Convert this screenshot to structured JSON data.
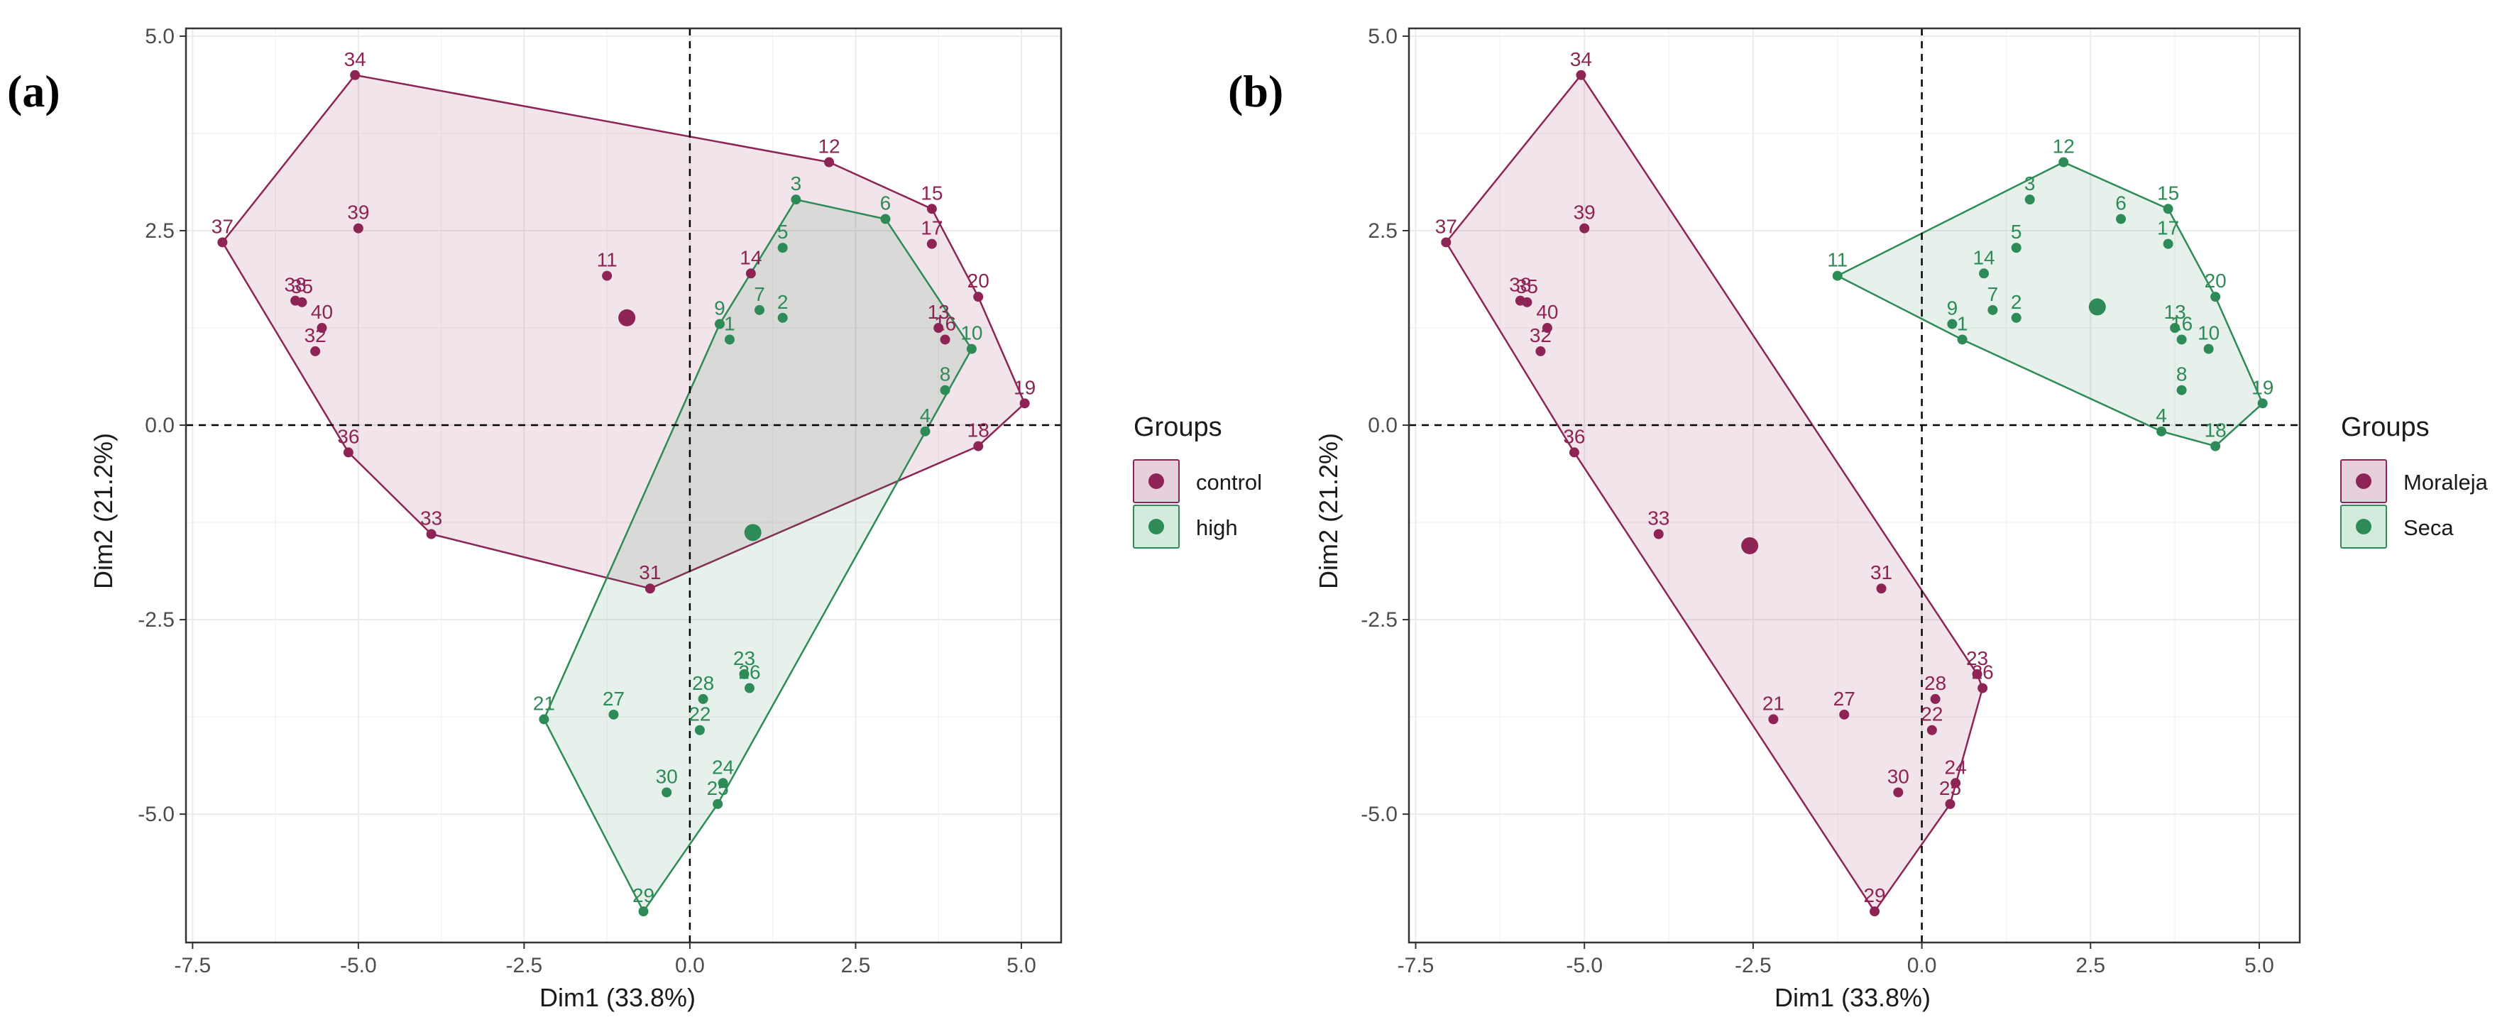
{
  "colors": {
    "group_a": "#8E2455",
    "group_b": "#2E8B57",
    "fill_a": "#E8CFDC",
    "fill_b": "#D3EBDD",
    "grid": "#EBEBEB",
    "axis": "#333333"
  },
  "chart_data": [
    {
      "panel_label": "(a)",
      "type": "scatter",
      "subtype": "PCA individuals map with convex hulls",
      "xlabel": "Dim1 (33.8%)",
      "ylabel": "Dim2 (21.2%)",
      "xlim": [
        -7.6,
        5.6
      ],
      "ylim": [
        -6.65,
        5.1
      ],
      "xticks": [
        -7.5,
        -5.0,
        -2.5,
        0.0,
        2.5,
        5.0
      ],
      "xtick_labels": [
        "-7.5",
        "-5.0",
        "-2.5",
        "0.0",
        "2.5",
        "5.0"
      ],
      "yticks": [
        -5.0,
        -2.5,
        0.0,
        2.5,
        5.0
      ],
      "ytick_labels": [
        "-5.0",
        "-2.5",
        "0.0",
        "2.5",
        "5.0"
      ],
      "legend_title": "Groups",
      "legend_position": "right",
      "groups": [
        {
          "name": "control",
          "color": "#8E2455",
          "fill": "#E8CFDC",
          "centroid": [
            -0.95,
            1.38
          ],
          "points": [
            {
              "id": "34",
              "x": -5.05,
              "y": 4.5
            },
            {
              "id": "39",
              "x": -5.0,
              "y": 2.53
            },
            {
              "id": "37",
              "x": -7.05,
              "y": 2.35
            },
            {
              "id": "38",
              "x": -5.95,
              "y": 1.6
            },
            {
              "id": "35",
              "x": -5.85,
              "y": 1.58
            },
            {
              "id": "40",
              "x": -5.55,
              "y": 1.25
            },
            {
              "id": "32",
              "x": -5.65,
              "y": 0.95
            },
            {
              "id": "36",
              "x": -5.15,
              "y": -0.35
            },
            {
              "id": "33",
              "x": -3.9,
              "y": -1.4
            },
            {
              "id": "31",
              "x": -0.6,
              "y": -2.1
            },
            {
              "id": "11",
              "x": -1.25,
              "y": 1.92
            },
            {
              "id": "14",
              "x": 0.92,
              "y": 1.95
            },
            {
              "id": "12",
              "x": 2.1,
              "y": 3.38
            },
            {
              "id": "15",
              "x": 3.65,
              "y": 2.78
            },
            {
              "id": "17",
              "x": 3.65,
              "y": 2.33
            },
            {
              "id": "20",
              "x": 4.35,
              "y": 1.65
            },
            {
              "id": "13",
              "x": 3.75,
              "y": 1.25
            },
            {
              "id": "16",
              "x": 3.85,
              "y": 1.1
            },
            {
              "id": "19",
              "x": 5.05,
              "y": 0.28
            },
            {
              "id": "18",
              "x": 4.35,
              "y": -0.27
            }
          ]
        },
        {
          "name": "high",
          "color": "#2E8B57",
          "fill": "#D3EBDD",
          "centroid": [
            0.95,
            -1.38
          ],
          "points": [
            {
              "id": "3",
              "x": 1.6,
              "y": 2.9
            },
            {
              "id": "6",
              "x": 2.95,
              "y": 2.65
            },
            {
              "id": "5",
              "x": 1.4,
              "y": 2.28
            },
            {
              "id": "7",
              "x": 1.05,
              "y": 1.48
            },
            {
              "id": "2",
              "x": 1.4,
              "y": 1.38
            },
            {
              "id": "9",
              "x": 0.45,
              "y": 1.3
            },
            {
              "id": "1",
              "x": 0.6,
              "y": 1.1
            },
            {
              "id": "10",
              "x": 4.25,
              "y": 0.98
            },
            {
              "id": "8",
              "x": 3.85,
              "y": 0.45
            },
            {
              "id": "4",
              "x": 3.55,
              "y": -0.08
            },
            {
              "id": "23",
              "x": 0.82,
              "y": -3.2
            },
            {
              "id": "26",
              "x": 0.9,
              "y": -3.38
            },
            {
              "id": "28",
              "x": 0.2,
              "y": -3.52
            },
            {
              "id": "22",
              "x": 0.15,
              "y": -3.92
            },
            {
              "id": "21",
              "x": -2.2,
              "y": -3.78
            },
            {
              "id": "27",
              "x": -1.15,
              "y": -3.72
            },
            {
              "id": "24",
              "x": 0.5,
              "y": -4.6
            },
            {
              "id": "25",
              "x": 0.42,
              "y": -4.87
            },
            {
              "id": "30",
              "x": -0.35,
              "y": -4.72
            },
            {
              "id": "29",
              "x": -0.7,
              "y": -6.25
            }
          ]
        }
      ]
    },
    {
      "panel_label": "(b)",
      "type": "scatter",
      "subtype": "PCA individuals map with convex hulls",
      "xlabel": "Dim1 (33.8%)",
      "ylabel": "Dim2 (21.2%)",
      "xlim": [
        -7.6,
        5.6
      ],
      "ylim": [
        -6.65,
        5.1
      ],
      "xticks": [
        -7.5,
        -5.0,
        -2.5,
        0.0,
        2.5,
        5.0
      ],
      "xtick_labels": [
        "-7.5",
        "-5.0",
        "-2.5",
        "0.0",
        "2.5",
        "5.0"
      ],
      "yticks": [
        -5.0,
        -2.5,
        0.0,
        2.5,
        5.0
      ],
      "ytick_labels": [
        "-5.0",
        "-2.5",
        "0.0",
        "2.5",
        "5.0"
      ],
      "legend_title": "Groups",
      "legend_position": "right",
      "groups": [
        {
          "name": "Moraleja",
          "color": "#8E2455",
          "fill": "#E8CFDC",
          "centroid": [
            -2.55,
            -1.55
          ],
          "points": [
            {
              "id": "34",
              "x": -5.05,
              "y": 4.5
            },
            {
              "id": "39",
              "x": -5.0,
              "y": 2.53
            },
            {
              "id": "37",
              "x": -7.05,
              "y": 2.35
            },
            {
              "id": "38",
              "x": -5.95,
              "y": 1.6
            },
            {
              "id": "35",
              "x": -5.85,
              "y": 1.58
            },
            {
              "id": "40",
              "x": -5.55,
              "y": 1.25
            },
            {
              "id": "32",
              "x": -5.65,
              "y": 0.95
            },
            {
              "id": "36",
              "x": -5.15,
              "y": -0.35
            },
            {
              "id": "33",
              "x": -3.9,
              "y": -1.4
            },
            {
              "id": "31",
              "x": -0.6,
              "y": -2.1
            },
            {
              "id": "23",
              "x": 0.82,
              "y": -3.2
            },
            {
              "id": "26",
              "x": 0.9,
              "y": -3.38
            },
            {
              "id": "28",
              "x": 0.2,
              "y": -3.52
            },
            {
              "id": "22",
              "x": 0.15,
              "y": -3.92
            },
            {
              "id": "21",
              "x": -2.2,
              "y": -3.78
            },
            {
              "id": "27",
              "x": -1.15,
              "y": -3.72
            },
            {
              "id": "24",
              "x": 0.5,
              "y": -4.6
            },
            {
              "id": "25",
              "x": 0.42,
              "y": -4.87
            },
            {
              "id": "30",
              "x": -0.35,
              "y": -4.72
            },
            {
              "id": "29",
              "x": -0.7,
              "y": -6.25
            }
          ]
        },
        {
          "name": "Seca",
          "color": "#2E8B57",
          "fill": "#D3EBDD",
          "centroid": [
            2.6,
            1.52
          ],
          "points": [
            {
              "id": "11",
              "x": -1.25,
              "y": 1.92
            },
            {
              "id": "12",
              "x": 2.1,
              "y": 3.38
            },
            {
              "id": "3",
              "x": 1.6,
              "y": 2.9
            },
            {
              "id": "6",
              "x": 2.95,
              "y": 2.65
            },
            {
              "id": "15",
              "x": 3.65,
              "y": 2.78
            },
            {
              "id": "17",
              "x": 3.65,
              "y": 2.33
            },
            {
              "id": "5",
              "x": 1.4,
              "y": 2.28
            },
            {
              "id": "14",
              "x": 0.92,
              "y": 1.95
            },
            {
              "id": "20",
              "x": 4.35,
              "y": 1.65
            },
            {
              "id": "7",
              "x": 1.05,
              "y": 1.48
            },
            {
              "id": "2",
              "x": 1.4,
              "y": 1.38
            },
            {
              "id": "9",
              "x": 0.45,
              "y": 1.3
            },
            {
              "id": "1",
              "x": 0.6,
              "y": 1.1
            },
            {
              "id": "13",
              "x": 3.75,
              "y": 1.25
            },
            {
              "id": "16",
              "x": 3.85,
              "y": 1.1
            },
            {
              "id": "10",
              "x": 4.25,
              "y": 0.98
            },
            {
              "id": "8",
              "x": 3.85,
              "y": 0.45
            },
            {
              "id": "19",
              "x": 5.05,
              "y": 0.28
            },
            {
              "id": "4",
              "x": 3.55,
              "y": -0.08
            },
            {
              "id": "18",
              "x": 4.35,
              "y": -0.27
            }
          ]
        }
      ]
    }
  ]
}
